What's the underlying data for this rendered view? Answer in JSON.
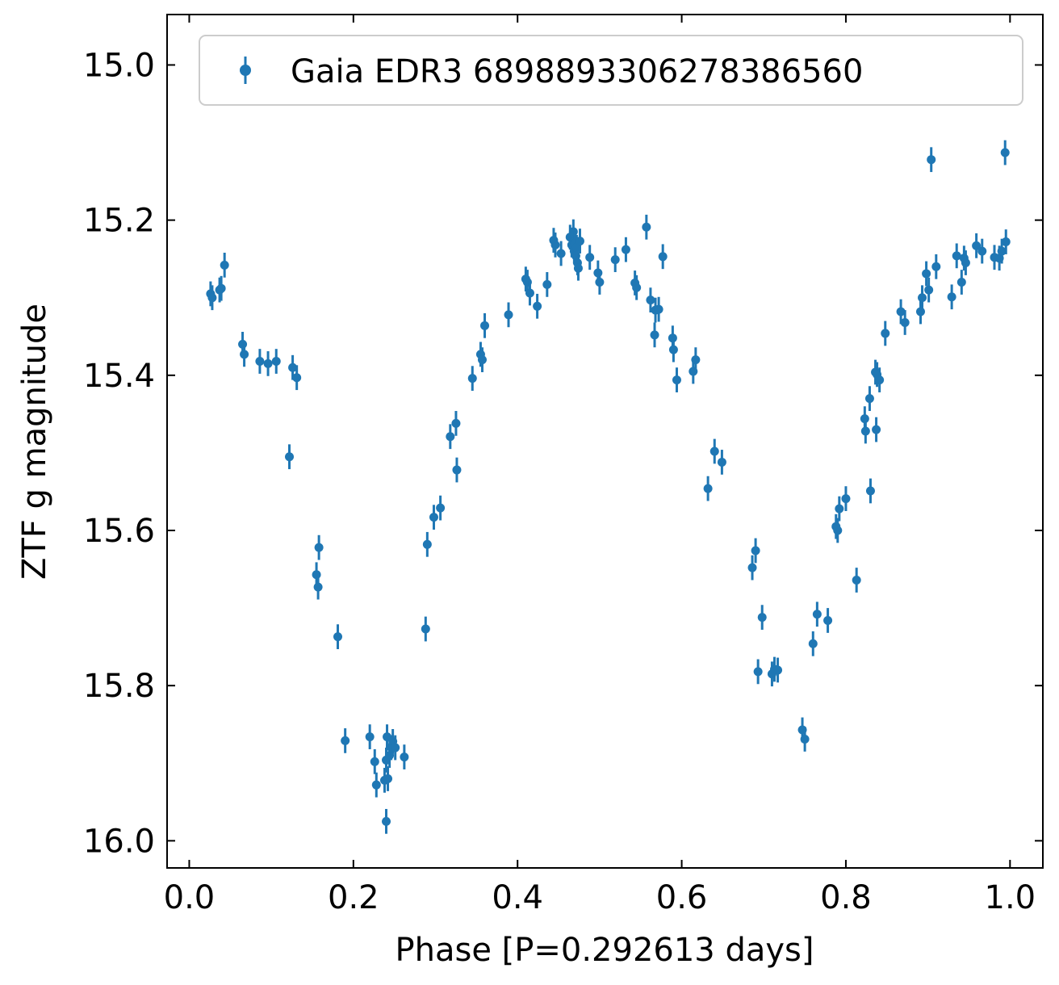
{
  "chart_data": {
    "type": "scatter",
    "title": "",
    "xlabel": "Phase [P=0.292613 days]",
    "ylabel": "ZTF g magnitude",
    "xlim": [
      -0.027,
      1.04
    ],
    "ylim": [
      16.035,
      14.935
    ],
    "y_inverted": true,
    "xticks": [
      0.0,
      0.2,
      0.4,
      0.6,
      0.8,
      1.0
    ],
    "xtick_labels": [
      "0.0",
      "0.2",
      "0.4",
      "0.6",
      "0.8",
      "1.0"
    ],
    "yticks": [
      15.0,
      15.2,
      15.4,
      15.6,
      15.8,
      16.0
    ],
    "ytick_labels": [
      "15.0",
      "15.2",
      "15.4",
      "15.6",
      "15.8",
      "16.0"
    ],
    "grid": false,
    "legend_position": "top",
    "colors": {
      "series": "#1f77b4"
    },
    "series": [
      {
        "name": "Gaia EDR3 6898893306278386560",
        "errorbars": true,
        "points": [
          [
            0.026,
            15.295,
            0.016
          ],
          [
            0.028,
            15.3,
            0.016
          ],
          [
            0.037,
            15.29,
            0.016
          ],
          [
            0.039,
            15.288,
            0.016
          ],
          [
            0.043,
            15.258,
            0.016
          ],
          [
            0.065,
            15.36,
            0.016
          ],
          [
            0.067,
            15.373,
            0.016
          ],
          [
            0.086,
            15.382,
            0.016
          ],
          [
            0.096,
            15.385,
            0.016
          ],
          [
            0.106,
            15.382,
            0.016
          ],
          [
            0.122,
            15.505,
            0.016
          ],
          [
            0.126,
            15.39,
            0.016
          ],
          [
            0.131,
            15.403,
            0.016
          ],
          [
            0.155,
            15.657,
            0.016
          ],
          [
            0.157,
            15.673,
            0.016
          ],
          [
            0.158,
            15.622,
            0.016
          ],
          [
            0.181,
            15.737,
            0.016
          ],
          [
            0.19,
            15.871,
            0.016
          ],
          [
            0.22,
            15.866,
            0.016
          ],
          [
            0.226,
            15.898,
            0.016
          ],
          [
            0.228,
            15.928,
            0.016
          ],
          [
            0.238,
            15.922,
            0.016
          ],
          [
            0.24,
            15.896,
            0.016
          ],
          [
            0.241,
            15.866,
            0.016
          ],
          [
            0.242,
            15.92,
            0.016
          ],
          [
            0.244,
            15.89,
            0.016
          ],
          [
            0.246,
            15.88,
            0.016
          ],
          [
            0.248,
            15.872,
            0.016
          ],
          [
            0.251,
            15.88,
            0.016
          ],
          [
            0.24,
            15.975,
            0.016
          ],
          [
            0.262,
            15.892,
            0.016
          ],
          [
            0.288,
            15.727,
            0.016
          ],
          [
            0.29,
            15.618,
            0.016
          ],
          [
            0.298,
            15.583,
            0.016
          ],
          [
            0.306,
            15.571,
            0.016
          ],
          [
            0.318,
            15.479,
            0.016
          ],
          [
            0.325,
            15.462,
            0.016
          ],
          [
            0.326,
            15.522,
            0.016
          ],
          [
            0.345,
            15.404,
            0.016
          ],
          [
            0.355,
            15.373,
            0.016
          ],
          [
            0.357,
            15.38,
            0.016
          ],
          [
            0.36,
            15.336,
            0.016
          ],
          [
            0.389,
            15.322,
            0.016
          ],
          [
            0.41,
            15.276,
            0.016
          ],
          [
            0.412,
            15.28,
            0.016
          ],
          [
            0.415,
            15.294,
            0.016
          ],
          [
            0.424,
            15.311,
            0.016
          ],
          [
            0.436,
            15.283,
            0.016
          ],
          [
            0.444,
            15.226,
            0.016
          ],
          [
            0.446,
            15.232,
            0.016
          ],
          [
            0.453,
            15.243,
            0.016
          ],
          [
            0.464,
            15.222,
            0.016
          ],
          [
            0.466,
            15.232,
            0.016
          ],
          [
            0.468,
            15.215,
            0.016
          ],
          [
            0.469,
            15.24,
            0.016
          ],
          [
            0.47,
            15.23,
            0.016
          ],
          [
            0.471,
            15.246,
            0.016
          ],
          [
            0.472,
            15.235,
            0.016
          ],
          [
            0.473,
            15.255,
            0.016
          ],
          [
            0.474,
            15.262,
            0.016
          ],
          [
            0.476,
            15.227,
            0.016
          ],
          [
            0.488,
            15.248,
            0.016
          ],
          [
            0.498,
            15.268,
            0.016
          ],
          [
            0.5,
            15.28,
            0.016
          ],
          [
            0.519,
            15.251,
            0.016
          ],
          [
            0.532,
            15.238,
            0.016
          ],
          [
            0.543,
            15.281,
            0.016
          ],
          [
            0.545,
            15.287,
            0.016
          ],
          [
            0.557,
            15.209,
            0.016
          ],
          [
            0.562,
            15.303,
            0.016
          ],
          [
            0.567,
            15.348,
            0.016
          ],
          [
            0.568,
            15.316,
            0.016
          ],
          [
            0.572,
            15.315,
            0.016
          ],
          [
            0.577,
            15.247,
            0.016
          ],
          [
            0.589,
            15.352,
            0.016
          ],
          [
            0.59,
            15.367,
            0.016
          ],
          [
            0.594,
            15.406,
            0.016
          ],
          [
            0.614,
            15.395,
            0.016
          ],
          [
            0.617,
            15.38,
            0.016
          ],
          [
            0.632,
            15.546,
            0.016
          ],
          [
            0.64,
            15.498,
            0.016
          ],
          [
            0.649,
            15.512,
            0.016
          ],
          [
            0.686,
            15.648,
            0.016
          ],
          [
            0.69,
            15.626,
            0.016
          ],
          [
            0.693,
            15.782,
            0.016
          ],
          [
            0.698,
            15.712,
            0.016
          ],
          [
            0.71,
            15.785,
            0.016
          ],
          [
            0.713,
            15.779,
            0.016
          ],
          [
            0.717,
            15.78,
            0.016
          ],
          [
            0.747,
            15.857,
            0.016
          ],
          [
            0.75,
            15.869,
            0.016
          ],
          [
            0.76,
            15.746,
            0.016
          ],
          [
            0.765,
            15.708,
            0.016
          ],
          [
            0.778,
            15.716,
            0.016
          ],
          [
            0.788,
            15.595,
            0.016
          ],
          [
            0.79,
            15.6,
            0.016
          ],
          [
            0.792,
            15.572,
            0.016
          ],
          [
            0.8,
            15.559,
            0.016
          ],
          [
            0.813,
            15.664,
            0.016
          ],
          [
            0.823,
            15.456,
            0.016
          ],
          [
            0.824,
            15.472,
            0.016
          ],
          [
            0.829,
            15.43,
            0.016
          ],
          [
            0.83,
            15.549,
            0.016
          ],
          [
            0.836,
            15.396,
            0.016
          ],
          [
            0.837,
            15.47,
            0.016
          ],
          [
            0.838,
            15.399,
            0.016
          ],
          [
            0.841,
            15.406,
            0.016
          ],
          [
            0.848,
            15.346,
            0.016
          ],
          [
            0.867,
            15.318,
            0.016
          ],
          [
            0.872,
            15.332,
            0.016
          ],
          [
            0.891,
            15.318,
            0.016
          ],
          [
            0.893,
            15.3,
            0.016
          ],
          [
            0.898,
            15.269,
            0.016
          ],
          [
            0.901,
            15.29,
            0.016
          ],
          [
            0.904,
            15.122,
            0.016
          ],
          [
            0.91,
            15.26,
            0.016
          ],
          [
            0.929,
            15.299,
            0.016
          ],
          [
            0.935,
            15.246,
            0.016
          ],
          [
            0.941,
            15.28,
            0.016
          ],
          [
            0.944,
            15.249,
            0.016
          ],
          [
            0.946,
            15.255,
            0.016
          ],
          [
            0.959,
            15.233,
            0.016
          ],
          [
            0.966,
            15.24,
            0.016
          ],
          [
            0.981,
            15.248,
            0.016
          ],
          [
            0.987,
            15.249,
            0.016
          ],
          [
            0.99,
            15.24,
            0.016
          ],
          [
            0.994,
            15.113,
            0.016
          ],
          [
            0.995,
            15.228,
            0.016
          ]
        ]
      }
    ]
  }
}
